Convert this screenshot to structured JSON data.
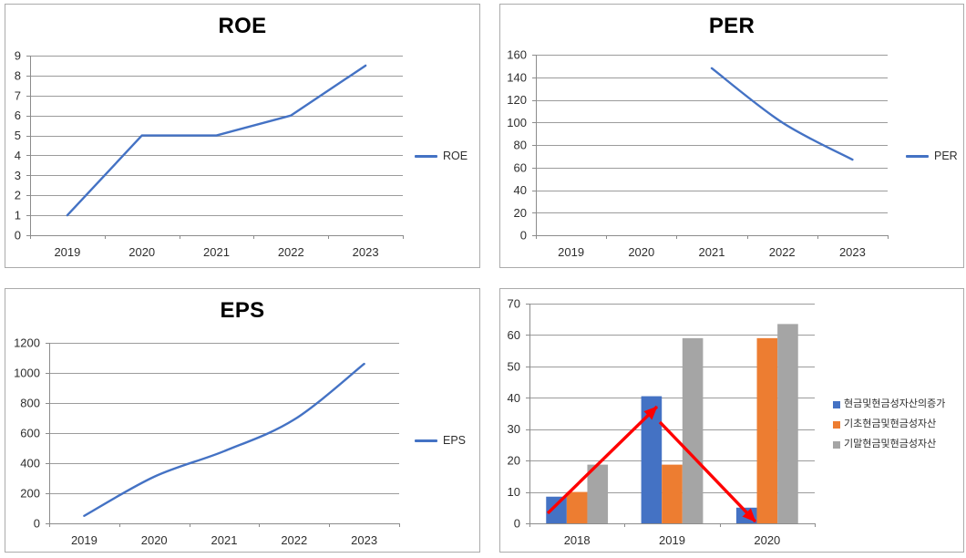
{
  "page": {
    "background": "#ffffff"
  },
  "colors": {
    "series_blue": "#4472C4",
    "series_orange": "#ED7D31",
    "series_gray": "#A5A5A5",
    "arrow_red": "#FF0000",
    "gridline": "#9b9b9b",
    "axis": "#8c8c8c",
    "tick_text": "#2e2e2e",
    "panel_border": "#ababab"
  },
  "chart_data": [
    {
      "id": "roe",
      "type": "line",
      "title": "ROE",
      "categories": [
        "2019",
        "2020",
        "2021",
        "2022",
        "2023"
      ],
      "series": [
        {
          "name": "ROE",
          "color": "#4472C4",
          "smooth": false,
          "values": [
            1,
            5,
            5,
            6,
            8.5
          ]
        }
      ],
      "legend": "ROE",
      "legend_position": "right",
      "grid": true,
      "xlabel": "",
      "ylabel": "",
      "ylim": [
        0,
        9
      ],
      "ytick_step": 1
    },
    {
      "id": "per",
      "type": "line",
      "title": "PER",
      "categories": [
        "2019",
        "2020",
        "2021",
        "2022",
        "2023"
      ],
      "series": [
        {
          "name": "PER",
          "color": "#4472C4",
          "smooth": true,
          "values": [
            null,
            null,
            148,
            100,
            67
          ]
        }
      ],
      "legend": "PER",
      "legend_position": "right",
      "grid": true,
      "xlabel": "",
      "ylabel": "",
      "ylim": [
        0,
        160
      ],
      "ytick_step": 20
    },
    {
      "id": "eps",
      "type": "line",
      "title": "EPS",
      "categories": [
        "2019",
        "2020",
        "2021",
        "2022",
        "2023"
      ],
      "series": [
        {
          "name": "EPS",
          "color": "#4472C4",
          "smooth": true,
          "values": [
            50,
            310,
            480,
            690,
            1060
          ]
        }
      ],
      "legend": "EPS",
      "legend_position": "right",
      "grid": true,
      "xlabel": "",
      "ylabel": "",
      "ylim": [
        0,
        1200
      ],
      "ytick_step": 200
    },
    {
      "id": "cash",
      "type": "bar",
      "title": "",
      "categories": [
        "2018",
        "2019",
        "2020"
      ],
      "series": [
        {
          "name": "현금및현금성자산의증가",
          "color": "#4472C4",
          "values": [
            8.5,
            40.5,
            5
          ]
        },
        {
          "name": "기초현금및현금성자산",
          "color": "#ED7D31",
          "values": [
            10,
            18.7,
            59
          ]
        },
        {
          "name": "기말현금및현금성자산",
          "color": "#A5A5A5",
          "values": [
            18.7,
            59,
            63.5
          ]
        }
      ],
      "legend_position": "right",
      "grid": true,
      "xlabel": "",
      "ylabel": "",
      "ylim": [
        0,
        70
      ],
      "ytick_step": 10,
      "annotations": {
        "arrow_color": "#FF0000",
        "arrows": [
          {
            "x1": 0.064,
            "y1": 0.954,
            "x2": 0.447,
            "y2": 0.469
          },
          {
            "x1": 0.457,
            "y1": 0.539,
            "x2": 0.792,
            "y2": 0.992
          }
        ]
      }
    }
  ]
}
